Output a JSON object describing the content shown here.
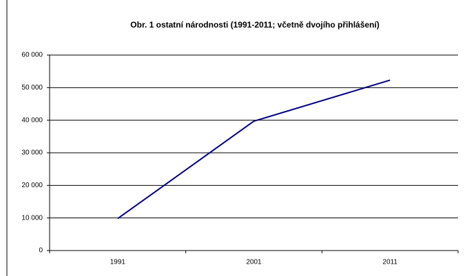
{
  "chart_data": {
    "type": "line",
    "title": "Obr. 1 ostatní národnosti (1991-2011;  včetně dvojího přihlášení)",
    "categories": [
      "1991",
      "2001",
      "2011"
    ],
    "series": [
      {
        "name": "ostatní národnosti",
        "color": "#000080",
        "values": [
          9800,
          39700,
          52300
        ]
      }
    ],
    "ylim": [
      0,
      60000
    ],
    "yticks": [
      0,
      {
        "value": 10000,
        "label": "10 000"
      },
      {
        "value": 20000,
        "label": "20 000"
      },
      {
        "value": 30000,
        "label": "30 000"
      },
      {
        "value": 40000,
        "label": "40 000"
      },
      {
        "value": 50000,
        "label": "50 000"
      },
      {
        "value": 60000,
        "label": "60 000"
      }
    ],
    "grid": true
  }
}
